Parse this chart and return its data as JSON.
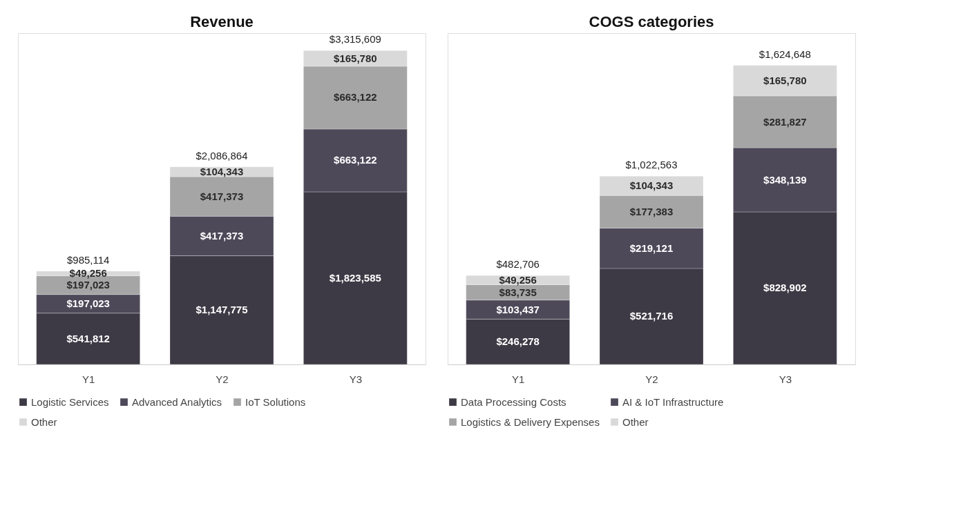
{
  "chart_data": [
    {
      "type": "bar",
      "title": "Revenue",
      "categories": [
        "Y1",
        "Y2",
        "Y3"
      ],
      "stacked": true,
      "legend": "bottom",
      "grid": false,
      "series": [
        {
          "name": "Logistic Services",
          "color": "#3e3a45",
          "values": [
            541812,
            1147775,
            1823585
          ],
          "value_labels": [
            "$541,812",
            "$1,147,775",
            "$1,823,585"
          ]
        },
        {
          "name": "Advanced Analytics",
          "color": "#4e4959",
          "values": [
            197023,
            417373,
            663122
          ],
          "value_labels": [
            "$197,023",
            "$417,373",
            "$663,122"
          ]
        },
        {
          "name": "IoT Solutions",
          "color": "#a5a5a5",
          "values": [
            197023,
            417373,
            663122
          ],
          "value_labels": [
            "$197,023",
            "$417,373",
            "$663,122"
          ]
        },
        {
          "name": "Other",
          "color": "#d9d9d9",
          "values": [
            49256,
            104343,
            165780
          ],
          "value_labels": [
            "$49,256",
            "$104,343",
            "$165,780"
          ]
        }
      ],
      "totals": [
        "$985,114",
        "$2,086,864",
        "$3,315,609"
      ]
    },
    {
      "type": "bar",
      "title": "COGS categories",
      "categories": [
        "Y1",
        "Y2",
        "Y3"
      ],
      "stacked": true,
      "legend": "bottom",
      "grid": false,
      "series": [
        {
          "name": "Data Processing Costs",
          "color": "#3e3a45",
          "values": [
            246278,
            521716,
            828902
          ],
          "value_labels": [
            "$246,278",
            "$521,716",
            "$828,902"
          ]
        },
        {
          "name": "AI & IoT Infrastructure",
          "color": "#4e4959",
          "values": [
            103437,
            219121,
            348139
          ],
          "value_labels": [
            "$103,437",
            "$219,121",
            "$348,139"
          ]
        },
        {
          "name": "Logistics & Delivery Expenses",
          "color": "#a5a5a5",
          "values": [
            83735,
            177383,
            281827
          ],
          "value_labels": [
            "$83,735",
            "$177,383",
            "$281,827"
          ]
        },
        {
          "name": "Other",
          "color": "#d9d9d9",
          "values": [
            49256,
            104343,
            165780
          ],
          "value_labels": [
            "$49,256",
            "$104,343",
            "$165,780"
          ]
        }
      ],
      "totals": [
        "$482,706",
        "$1,022,563",
        "$1,624,648"
      ]
    }
  ]
}
